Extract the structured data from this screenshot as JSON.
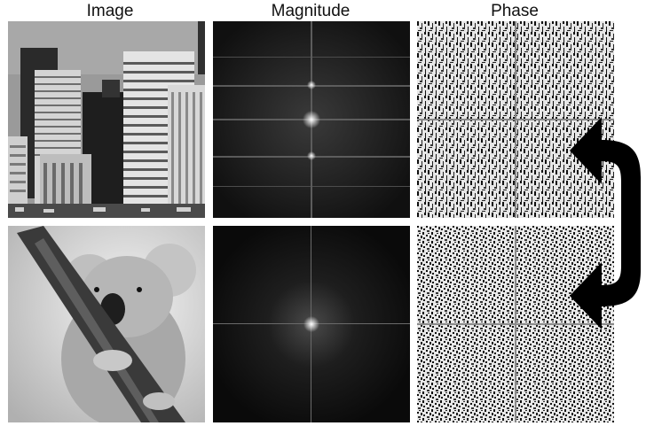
{
  "titles": {
    "image": "Image",
    "magnitude": "Magnitude",
    "phase": "Phase"
  },
  "rows": [
    {
      "subject": "city skyline"
    },
    {
      "subject": "koala"
    }
  ],
  "colors": {
    "background": "#ffffff",
    "arrow": "#000000",
    "spectrum_dark": "#080808",
    "phase_light": "#f2f2f2"
  },
  "icons": {
    "swap": "curved-double-arrow-icon"
  }
}
